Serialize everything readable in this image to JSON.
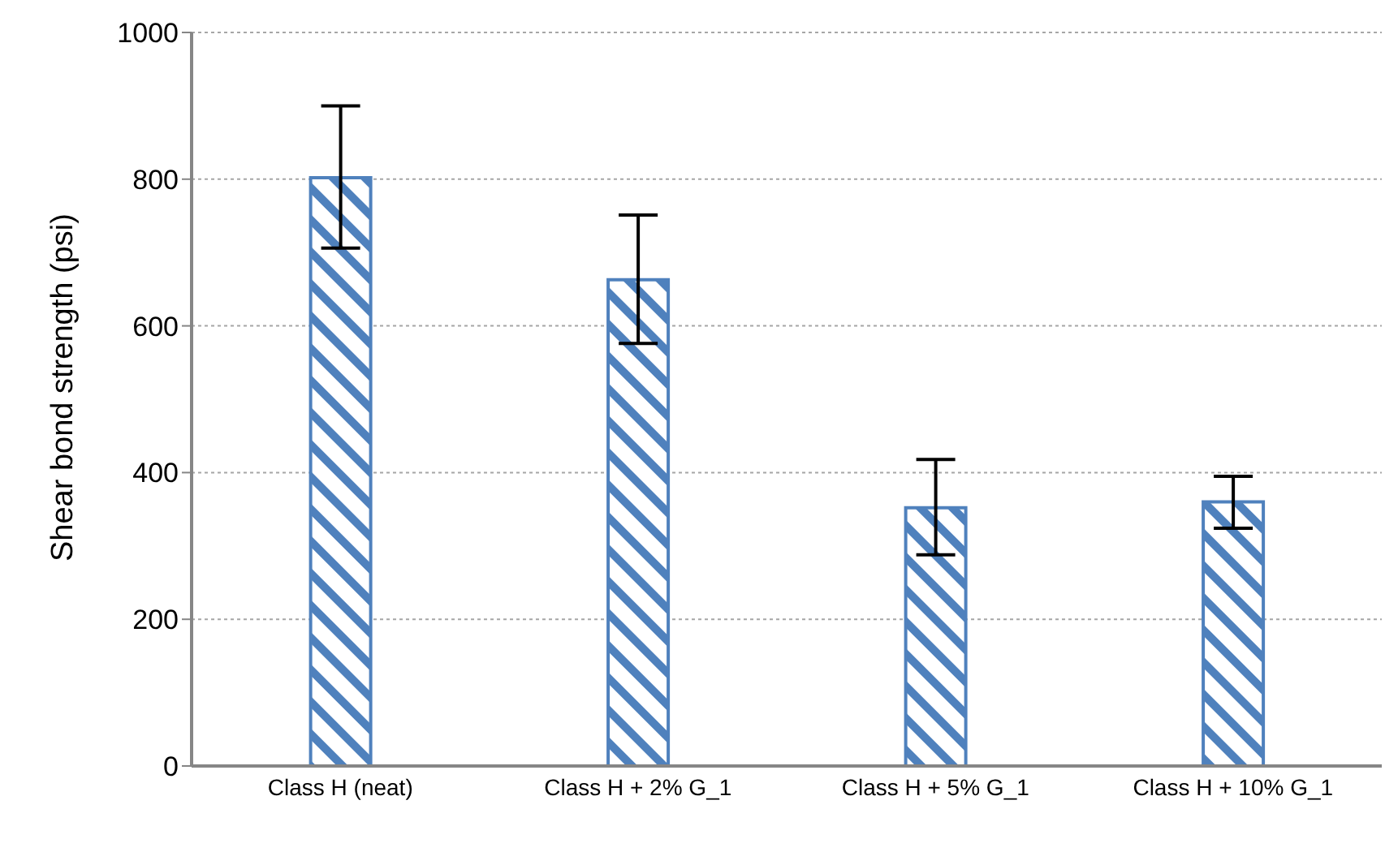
{
  "chart_data": {
    "type": "bar",
    "ylabel": "Shear bond strength (psi)",
    "categories": [
      "Class H (neat)",
      "Class H + 2% G_1",
      "Class H + 5% G_1",
      "Class H + 10% G_1"
    ],
    "values": [
      802,
      663,
      352,
      360
    ],
    "errors": [
      [
        706,
        900
      ],
      [
        576,
        751
      ],
      [
        288,
        418
      ],
      [
        324,
        395
      ]
    ],
    "color": "#4f81bd",
    "ylim": [
      0,
      1000
    ],
    "yticks": [
      0,
      200,
      400,
      600,
      800,
      1000
    ],
    "grid": "y"
  }
}
